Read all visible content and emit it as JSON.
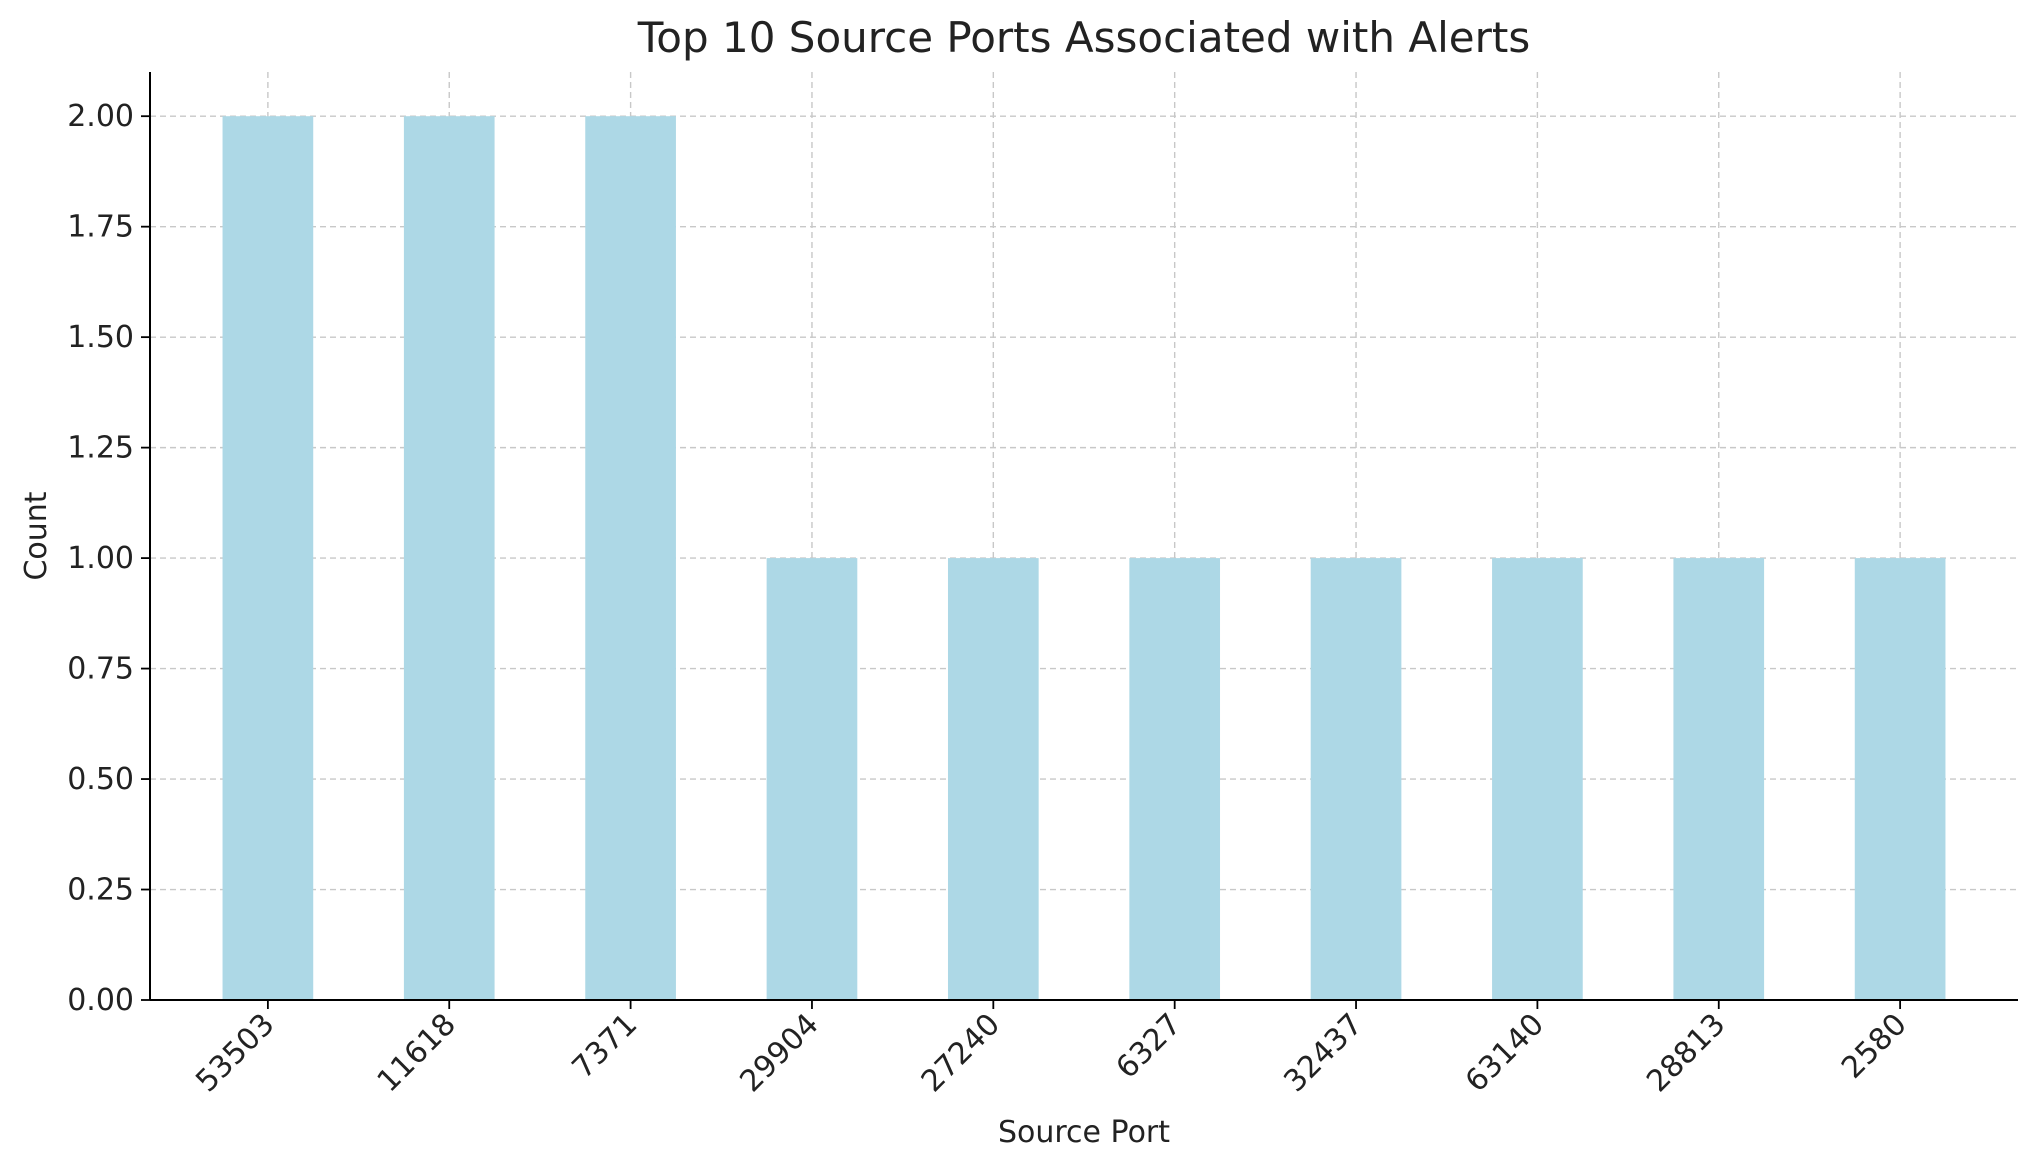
{
  "chart_data": {
    "type": "bar",
    "title": "Top 10 Source Ports Associated with Alerts",
    "xlabel": "Source Port",
    "ylabel": "Count",
    "categories": [
      "53503",
      "11618",
      "7371",
      "29904",
      "27240",
      "6327",
      "32437",
      "63140",
      "28813",
      "2580"
    ],
    "values": [
      2,
      2,
      2,
      1,
      1,
      1,
      1,
      1,
      1,
      1
    ],
    "ylim": [
      0,
      2.1
    ],
    "yticks": [
      "0.00",
      "0.25",
      "0.50",
      "0.75",
      "1.00",
      "1.25",
      "1.50",
      "1.75",
      "2.00"
    ],
    "grid": true,
    "bar_color": "#add8e6"
  }
}
